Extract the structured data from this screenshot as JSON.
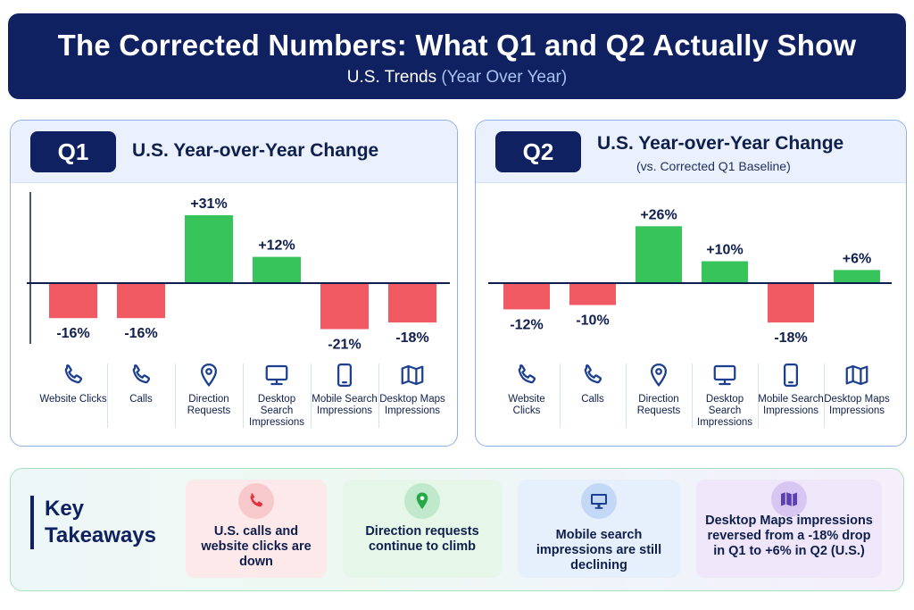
{
  "header": {
    "title": "The Corrected Numbers: What Q1 and Q2 Actually Show",
    "subtitle_main": "U.S. Trends",
    "subtitle_accent": "(Year Over Year)"
  },
  "colors": {
    "navy": "#0f2160",
    "positive": "#37c45a",
    "negative": "#f25a63",
    "panel_border": "#8fb0ea",
    "icon_blue": "#1d3f8f"
  },
  "chart_data": [
    {
      "type": "bar",
      "panel_badge": "Q1",
      "title": "U.S. Year-over-Year Change",
      "subtitle": "",
      "categories": [
        "Website Clicks",
        "Calls",
        "Direction Requests",
        "Desktop Search Impressions",
        "Mobile Search Impressions",
        "Desktop Maps Impressions"
      ],
      "values": [
        -16,
        -16,
        31,
        12,
        -21,
        -18
      ],
      "value_labels": [
        "-16%",
        "-16%",
        "+31%",
        "+12%",
        "-21%",
        "-18%"
      ],
      "category_icons": [
        "phone-icon",
        "phone-icon",
        "map-pin-icon",
        "monitor-icon",
        "mobile-phone-icon",
        "map-icon"
      ],
      "ylim": [
        -25,
        35
      ],
      "grid": false
    },
    {
      "type": "bar",
      "panel_badge": "Q2",
      "title": "U.S. Year-over-Year Change",
      "subtitle": "(vs. Corrected Q1 Baseline)",
      "categories": [
        "Website Clicks",
        "Calls",
        "Direction Requests",
        "Desktop Search Impressions",
        "Mobile Search Impressions",
        "Desktop Maps Impressions"
      ],
      "values": [
        -12,
        -10,
        26,
        10,
        -18,
        6
      ],
      "value_labels": [
        "-12%",
        "-10%",
        "+26%",
        "+10%",
        "-18%",
        "+6%"
      ],
      "category_icons": [
        "phone-icon",
        "phone-icon",
        "map-pin-icon",
        "monitor-icon",
        "mobile-phone-icon",
        "map-icon"
      ],
      "ylim": [
        -25,
        35
      ],
      "grid": false
    }
  ],
  "takeaways": {
    "title": "Key Takeaways",
    "items": [
      {
        "text": "U.S. calls and website clicks are down",
        "icon": "phone-icon"
      },
      {
        "text": "Direction requests continue to climb",
        "icon": "map-pin-icon"
      },
      {
        "text": "Mobile search impressions are still declining",
        "icon": "monitor-icon"
      },
      {
        "text": "Desktop Maps impressions reversed from a -18% drop in Q1 to +6% in Q2 (U.S.)",
        "icon": "map-icon"
      }
    ]
  }
}
